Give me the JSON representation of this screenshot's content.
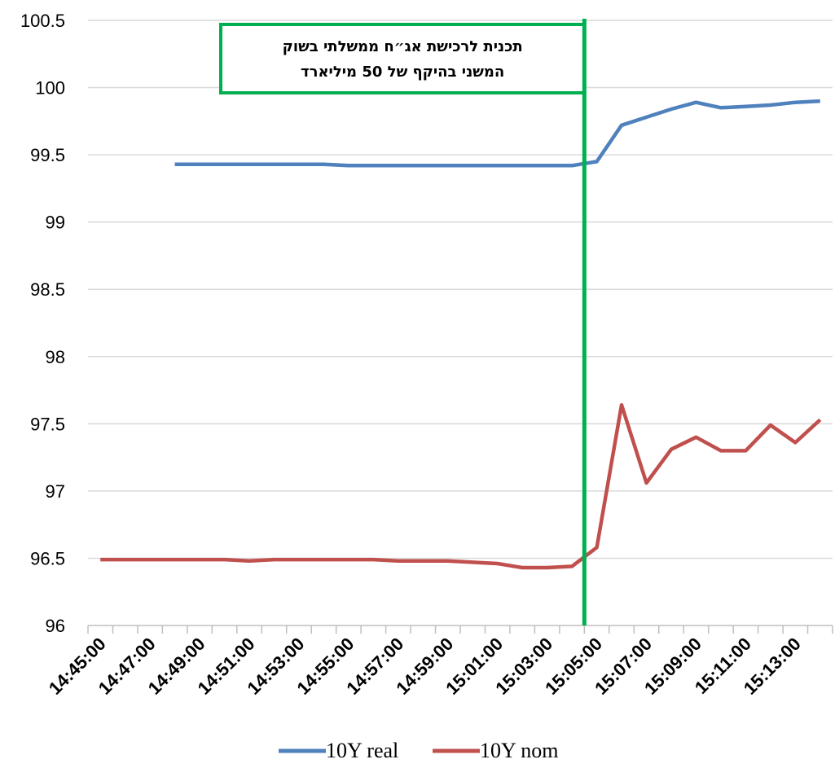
{
  "chart_data": {
    "type": "line",
    "title": "",
    "xlabel": "",
    "ylabel": "",
    "ylim": [
      96,
      100.5
    ],
    "y_ticks": [
      "96",
      "96.5",
      "97",
      "97.5",
      "98",
      "98.5",
      "99",
      "99.5",
      "100",
      "100.5"
    ],
    "x": [
      "14:45:00",
      "14:46:00",
      "14:47:00",
      "14:48:00",
      "14:49:00",
      "14:50:00",
      "14:51:00",
      "14:52:00",
      "14:53:00",
      "14:54:00",
      "14:55:00",
      "14:56:00",
      "14:57:00",
      "14:58:00",
      "14:59:00",
      "15:00:00",
      "15:01:00",
      "15:02:00",
      "15:03:00",
      "15:04:00",
      "15:05:00",
      "15:06:00",
      "15:07:00",
      "15:08:00",
      "15:09:00",
      "15:10:00",
      "15:11:00",
      "15:12:00",
      "15:13:00",
      "15:14:00"
    ],
    "x_tick_labels": [
      "14:45:00",
      "14:47:00",
      "14:49:00",
      "14:51:00",
      "14:53:00",
      "14:55:00",
      "14:57:00",
      "14:59:00",
      "15:01:00",
      "15:03:00",
      "15:05:00",
      "15:07:00",
      "15:09:00",
      "15:11:00",
      "15:13:00"
    ],
    "grid": "horizontal",
    "legend": "bottom",
    "series": [
      {
        "name": "10Y real",
        "color": "#4f81bd",
        "values": [
          null,
          null,
          null,
          99.43,
          99.43,
          99.43,
          99.43,
          99.43,
          99.43,
          99.43,
          99.42,
          99.42,
          99.42,
          99.42,
          99.42,
          99.42,
          99.42,
          99.42,
          99.42,
          99.42,
          99.45,
          99.72,
          99.78,
          99.84,
          99.89,
          99.85,
          99.86,
          99.87,
          99.89,
          99.9
        ]
      },
      {
        "name": "10Y nom",
        "color": "#c0504d",
        "values": [
          96.49,
          96.49,
          96.49,
          96.49,
          96.49,
          96.49,
          96.48,
          96.49,
          96.49,
          96.49,
          96.49,
          96.49,
          96.48,
          96.48,
          96.48,
          96.47,
          96.46,
          96.43,
          96.43,
          96.44,
          96.58,
          97.64,
          97.06,
          97.31,
          97.4,
          97.3,
          97.3,
          97.49,
          97.36,
          97.53
        ]
      }
    ],
    "event": {
      "x": "15:04:30",
      "color": "#00b050",
      "label_lines": [
        "תכנית לרכישת אג״ח ממשלתי בשוק",
        "המשני בהיקף של 50 מיליארד"
      ]
    }
  }
}
